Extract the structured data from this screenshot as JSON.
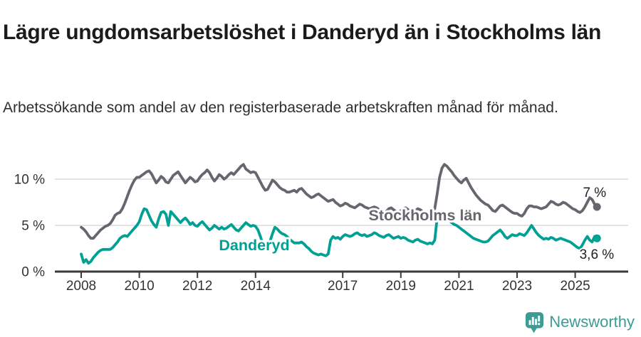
{
  "header": {
    "title": "Lägre ungdomsarbetslöshet i Danderyd än i Stockholms län",
    "subtitle": "Arbetssökande som andel av den registerbaserade arbetskraften månad för månad."
  },
  "footer": {
    "brand": "Newsworthy",
    "logo_icon": "newsworthy-speech-bubble-bar-chart-icon"
  },
  "colors": {
    "background": "#ffffff",
    "title_text": "#1b1b19",
    "subtitle_text": "#2e2e2e",
    "axis_text": "#333333",
    "axis_line": "#3a3a3a",
    "gridline": "#dcdcdc",
    "stockholm_line": "#66666e",
    "danderyd_line": "#00a095",
    "end_label_text": "#1f1f1f",
    "brand_teal": "#3d9b94"
  },
  "chart_data": {
    "type": "line",
    "unit": "percent",
    "frequency": "monthly",
    "start": "2008-01",
    "end": "2025-10",
    "grid": "horizontal-only",
    "y_axis": {
      "ticks": [
        {
          "value": 0,
          "label": "0 %"
        },
        {
          "value": 5,
          "label": "5 %"
        },
        {
          "value": 10,
          "label": "10 %"
        }
      ],
      "ylim": [
        0,
        12.3
      ]
    },
    "x_axis": {
      "tick_years": [
        2008,
        2010,
        2012,
        2014,
        2017,
        2019,
        2021,
        2023,
        2025
      ],
      "tick_labels": [
        "2008",
        "2010",
        "2012",
        "2014",
        "2017",
        "2019",
        "2021",
        "2023",
        "2025"
      ]
    },
    "series": [
      {
        "name": "Stockholms län",
        "color": "#66666e",
        "end_label": "7 %",
        "values": [
          4.8,
          4.6,
          4.3,
          3.9,
          3.6,
          3.6,
          3.9,
          4.2,
          4.5,
          4.7,
          4.9,
          5.0,
          5.2,
          5.6,
          6.1,
          6.3,
          6.4,
          6.8,
          7.4,
          8.1,
          8.8,
          9.4,
          9.9,
          10.2,
          10.2,
          10.4,
          10.6,
          10.8,
          10.9,
          10.6,
          10.1,
          9.6,
          9.9,
          10.3,
          10.1,
          9.7,
          9.6,
          10.0,
          10.4,
          10.6,
          10.8,
          10.4,
          10.0,
          9.6,
          9.9,
          10.2,
          10.0,
          9.7,
          9.8,
          10.2,
          10.5,
          10.7,
          11.0,
          10.7,
          10.2,
          9.8,
          10.1,
          10.5,
          10.3,
          10.0,
          10.2,
          10.5,
          10.7,
          10.5,
          10.8,
          11.1,
          11.4,
          11.6,
          11.1,
          10.9,
          10.7,
          10.8,
          10.7,
          10.2,
          9.7,
          9.2,
          8.8,
          8.9,
          9.4,
          9.9,
          9.7,
          9.4,
          9.1,
          8.9,
          8.8,
          8.6,
          8.6,
          8.7,
          8.8,
          8.6,
          8.9,
          9.0,
          8.7,
          8.4,
          8.2,
          8.0,
          8.1,
          8.3,
          8.4,
          8.2,
          8.0,
          7.8,
          7.6,
          7.7,
          7.8,
          7.5,
          7.3,
          7.1,
          7.2,
          7.4,
          7.3,
          7.1,
          7.0,
          6.9,
          7.1,
          7.3,
          7.2,
          7.0,
          6.9,
          6.8,
          6.9,
          7.0,
          6.9,
          6.7,
          6.5,
          6.3,
          6.5,
          6.8,
          6.9,
          6.7,
          6.5,
          6.4,
          6.6,
          6.8,
          6.9,
          6.7,
          6.5,
          6.4,
          6.6,
          6.8,
          6.7,
          6.5,
          6.4,
          6.3,
          6.4,
          6.3,
          6.8,
          8.4,
          10.2,
          11.2,
          11.6,
          11.4,
          11.1,
          10.8,
          10.4,
          10.1,
          9.8,
          9.6,
          9.9,
          10.1,
          9.6,
          9.1,
          8.7,
          8.3,
          8.0,
          7.7,
          7.5,
          7.3,
          7.2,
          6.9,
          6.6,
          6.5,
          6.8,
          7.1,
          7.2,
          7.0,
          6.8,
          6.6,
          6.4,
          6.3,
          6.3,
          6.1,
          6.0,
          6.3,
          6.8,
          7.1,
          7.1,
          7.0,
          7.0,
          6.9,
          6.8,
          6.9,
          7.0,
          7.3,
          7.6,
          7.5,
          7.3,
          7.2,
          7.3,
          7.5,
          7.4,
          7.2,
          7.0,
          6.8,
          6.7,
          6.5,
          6.4,
          6.6,
          7.0,
          7.5,
          8.0,
          7.8,
          7.3,
          7.0
        ]
      },
      {
        "name": "Danderyd",
        "color": "#00a095",
        "end_label": "3,6 %",
        "values": [
          1.9,
          1.0,
          1.3,
          0.9,
          1.1,
          1.5,
          1.8,
          2.1,
          2.3,
          2.4,
          2.4,
          2.4,
          2.4,
          2.6,
          2.9,
          3.2,
          3.6,
          3.8,
          3.9,
          3.8,
          4.1,
          4.4,
          4.7,
          5.0,
          5.4,
          6.2,
          6.8,
          6.7,
          6.1,
          5.5,
          5.1,
          4.8,
          5.7,
          6.4,
          6.5,
          6.2,
          5.0,
          6.5,
          6.2,
          5.9,
          5.6,
          5.3,
          5.6,
          5.8,
          5.5,
          5.1,
          5.3,
          5.0,
          4.9,
          5.2,
          5.4,
          5.1,
          4.8,
          4.5,
          4.7,
          5.0,
          4.8,
          4.6,
          4.8,
          4.6,
          4.7,
          4.9,
          5.1,
          4.8,
          4.5,
          4.4,
          4.7,
          5.0,
          5.3,
          5.1,
          4.9,
          5.0,
          4.9,
          4.5,
          3.8,
          3.0,
          2.5,
          2.7,
          3.3,
          4.1,
          4.8,
          4.6,
          4.3,
          4.1,
          4.0,
          3.8,
          3.5,
          3.3,
          3.1,
          3.1,
          3.1,
          3.2,
          3.0,
          2.7,
          2.5,
          2.2,
          2.0,
          1.9,
          1.8,
          1.9,
          1.8,
          1.7,
          1.9,
          3.4,
          3.8,
          3.6,
          3.7,
          3.5,
          3.8,
          4.0,
          3.9,
          3.8,
          3.9,
          4.1,
          4.2,
          4.0,
          3.9,
          4.0,
          3.8,
          3.9,
          4.0,
          4.2,
          4.1,
          3.9,
          3.8,
          3.7,
          3.9,
          4.0,
          3.8,
          3.6,
          3.7,
          3.8,
          3.6,
          3.7,
          3.6,
          3.4,
          3.3,
          3.2,
          3.4,
          3.5,
          3.3,
          3.2,
          3.1,
          3.0,
          3.1,
          3.0,
          3.4,
          5.8,
          6.3,
          6.2,
          6.0,
          5.8,
          5.5,
          5.3,
          5.1,
          5.0,
          4.8,
          4.6,
          4.4,
          4.2,
          4.0,
          3.8,
          3.6,
          3.5,
          3.4,
          3.3,
          3.2,
          3.2,
          3.3,
          3.6,
          3.9,
          4.1,
          4.3,
          4.5,
          4.2,
          3.8,
          3.6,
          3.8,
          4.0,
          3.9,
          3.9,
          4.1,
          4.0,
          3.9,
          4.2,
          4.6,
          5.0,
          4.6,
          4.2,
          3.9,
          3.7,
          3.5,
          3.6,
          3.5,
          3.7,
          3.6,
          3.4,
          3.5,
          3.6,
          3.5,
          3.4,
          3.3,
          3.2,
          3.0,
          2.8,
          2.6,
          2.5,
          2.9,
          3.4,
          3.8,
          3.4,
          3.2,
          3.8,
          3.6
        ]
      }
    ]
  }
}
